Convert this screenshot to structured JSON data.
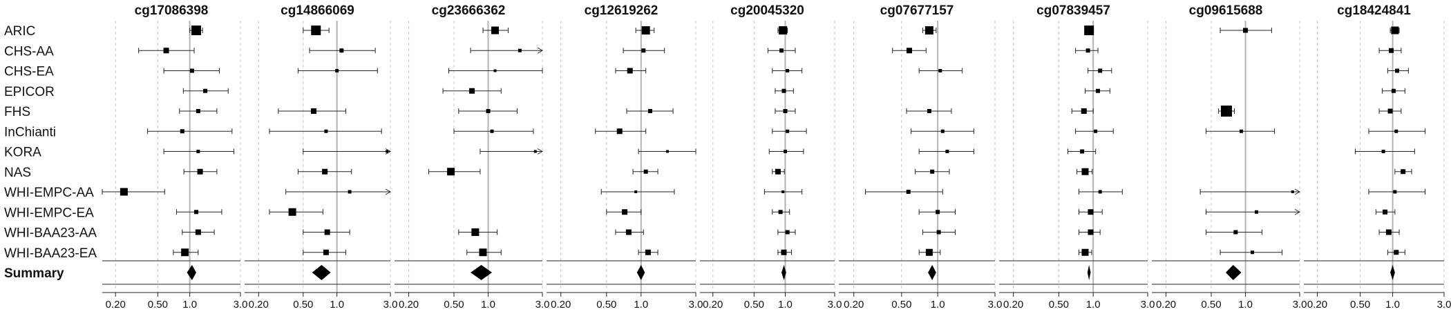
{
  "chart_data": {
    "type": "forest",
    "x_scale": "log",
    "xlim": [
      0.15,
      3.0
    ],
    "x_ticks": [
      0.2,
      0.5,
      1.0,
      3.0
    ],
    "x_tick_labels": [
      "0.20",
      "0.50",
      "1.0",
      "3.0"
    ],
    "reference_line": 1.0,
    "grid": "dashed-vertical",
    "studies": [
      "ARIC",
      "CHS-AA",
      "CHS-EA",
      "EPICOR",
      "FHS",
      "InChianti",
      "KORA",
      "NAS",
      "WHI-EMPC-AA",
      "WHI-EMPC-EA",
      "WHI-BAA23-AA",
      "WHI-BAA23-EA"
    ],
    "summary_label": "Summary",
    "panels": [
      {
        "title": "cg17086398",
        "points": [
          {
            "est": 1.15,
            "lo": 1.0,
            "hi": 1.32,
            "w": 14
          },
          {
            "est": 0.6,
            "lo": 0.33,
            "hi": 1.1,
            "w": 8
          },
          {
            "est": 1.05,
            "lo": 0.57,
            "hi": 1.9,
            "w": 6
          },
          {
            "est": 1.4,
            "lo": 0.87,
            "hi": 2.3,
            "w": 6
          },
          {
            "est": 1.2,
            "lo": 0.8,
            "hi": 1.8,
            "w": 6
          },
          {
            "est": 0.85,
            "lo": 0.4,
            "hi": 2.5,
            "w": 6
          },
          {
            "est": 1.2,
            "lo": 0.57,
            "hi": 2.6,
            "w": 5
          },
          {
            "est": 1.25,
            "lo": 0.88,
            "hi": 1.8,
            "w": 8
          },
          {
            "est": 0.24,
            "lo": 0.15,
            "hi": 0.58,
            "w": 11
          },
          {
            "est": 1.15,
            "lo": 0.75,
            "hi": 2.0,
            "w": 6
          },
          {
            "est": 1.2,
            "lo": 0.85,
            "hi": 1.7,
            "w": 8
          },
          {
            "est": 0.9,
            "lo": 0.7,
            "hi": 1.2,
            "w": 11
          }
        ],
        "summary": {
          "est": 1.05,
          "lo": 0.94,
          "hi": 1.15
        }
      },
      {
        "title": "cg14866069",
        "points": [
          {
            "est": 0.65,
            "lo": 0.5,
            "hi": 0.85,
            "w": 14
          },
          {
            "est": 1.1,
            "lo": 0.57,
            "hi": 2.2,
            "w": 6
          },
          {
            "est": 1.0,
            "lo": 0.45,
            "hi": 2.3,
            "w": 5
          },
          null,
          {
            "est": 0.62,
            "lo": 0.3,
            "hi": 1.2,
            "w": 8
          },
          {
            "est": 0.8,
            "lo": 0.25,
            "hi": 2.5,
            "w": 5
          },
          {
            "est": 2.8,
            "lo": 0.5,
            "hi": 3.0,
            "w": 4,
            "arrow": true
          },
          {
            "est": 0.78,
            "lo": 0.45,
            "hi": 1.35,
            "w": 8
          },
          {
            "est": 1.3,
            "lo": 0.35,
            "hi": 3.0,
            "w": 5,
            "arrow": true
          },
          {
            "est": 0.4,
            "lo": 0.25,
            "hi": 0.75,
            "w": 11
          },
          {
            "est": 0.82,
            "lo": 0.5,
            "hi": 1.3,
            "w": 8
          },
          {
            "est": 0.8,
            "lo": 0.5,
            "hi": 1.2,
            "w": 8
          }
        ],
        "summary": {
          "est": 0.73,
          "lo": 0.6,
          "hi": 0.88
        }
      },
      {
        "title": "cg23666362",
        "points": [
          {
            "est": 1.15,
            "lo": 0.9,
            "hi": 1.5,
            "w": 11
          },
          {
            "est": 1.9,
            "lo": 0.7,
            "hi": 3.0,
            "w": 5,
            "arrow": true
          },
          {
            "est": 1.15,
            "lo": 0.45,
            "hi": 3.0,
            "w": 4
          },
          {
            "est": 0.72,
            "lo": 0.4,
            "hi": 1.3,
            "w": 8
          },
          {
            "est": 1.0,
            "lo": 0.55,
            "hi": 1.8,
            "w": 6
          },
          {
            "est": 1.08,
            "lo": 0.5,
            "hi": 2.5,
            "w": 5
          },
          {
            "est": 2.6,
            "lo": 0.85,
            "hi": 3.0,
            "w": 4,
            "arrow": true
          },
          {
            "est": 0.47,
            "lo": 0.3,
            "hi": 0.85,
            "w": 11
          },
          null,
          null,
          {
            "est": 0.77,
            "lo": 0.55,
            "hi": 1.2,
            "w": 11
          },
          {
            "est": 0.9,
            "lo": 0.65,
            "hi": 1.3,
            "w": 11
          }
        ],
        "summary": {
          "est": 0.87,
          "lo": 0.7,
          "hi": 1.08
        }
      },
      {
        "title": "cg12619262",
        "points": [
          {
            "est": 1.1,
            "lo": 0.9,
            "hi": 1.3,
            "w": 12
          },
          {
            "est": 1.05,
            "lo": 0.7,
            "hi": 1.6,
            "w": 6
          },
          {
            "est": 0.8,
            "lo": 0.6,
            "hi": 1.1,
            "w": 8
          },
          null,
          {
            "est": 1.2,
            "lo": 0.75,
            "hi": 1.9,
            "w": 6
          },
          {
            "est": 0.65,
            "lo": 0.4,
            "hi": 1.1,
            "w": 8
          },
          {
            "est": 1.7,
            "lo": 0.95,
            "hi": 3.0,
            "w": 4
          },
          {
            "est": 1.1,
            "lo": 0.85,
            "hi": 1.4,
            "w": 6
          },
          {
            "est": 0.9,
            "lo": 0.45,
            "hi": 1.95,
            "w": 4
          },
          {
            "est": 0.72,
            "lo": 0.5,
            "hi": 1.0,
            "w": 8
          },
          {
            "est": 0.78,
            "lo": 0.6,
            "hi": 1.05,
            "w": 8
          },
          {
            "est": 1.15,
            "lo": 0.95,
            "hi": 1.4,
            "w": 8
          }
        ],
        "summary": {
          "est": 1.0,
          "lo": 0.92,
          "hi": 1.08
        }
      },
      {
        "title": "cg20045320",
        "points": [
          {
            "est": 0.95,
            "lo": 0.85,
            "hi": 1.05,
            "w": 12
          },
          {
            "est": 0.92,
            "lo": 0.68,
            "hi": 1.25,
            "w": 6
          },
          {
            "est": 1.05,
            "lo": 0.75,
            "hi": 1.45,
            "w": 5
          },
          {
            "est": 0.97,
            "lo": 0.8,
            "hi": 1.2,
            "w": 6
          },
          {
            "est": 1.0,
            "lo": 0.8,
            "hi": 1.25,
            "w": 6
          },
          {
            "est": 1.05,
            "lo": 0.75,
            "hi": 1.6,
            "w": 5
          },
          {
            "est": 1.0,
            "lo": 0.7,
            "hi": 1.5,
            "w": 5
          },
          {
            "est": 0.85,
            "lo": 0.75,
            "hi": 0.98,
            "w": 8
          },
          {
            "est": 0.95,
            "lo": 0.63,
            "hi": 1.45,
            "w": 4
          },
          {
            "est": 0.9,
            "lo": 0.75,
            "hi": 1.1,
            "w": 6
          },
          {
            "est": 1.05,
            "lo": 0.85,
            "hi": 1.25,
            "w": 6
          },
          {
            "est": 0.97,
            "lo": 0.85,
            "hi": 1.15,
            "w": 8
          }
        ],
        "summary": {
          "est": 0.97,
          "lo": 0.92,
          "hi": 1.02
        }
      },
      {
        "title": "cg07677157",
        "points": [
          {
            "est": 0.85,
            "lo": 0.75,
            "hi": 0.97,
            "w": 12
          },
          {
            "est": 0.58,
            "lo": 0.42,
            "hi": 0.8,
            "w": 8
          },
          {
            "est": 1.05,
            "lo": 0.7,
            "hi": 1.6,
            "w": 5
          },
          null,
          {
            "est": 0.85,
            "lo": 0.55,
            "hi": 1.3,
            "w": 6
          },
          {
            "est": 1.1,
            "lo": 0.6,
            "hi": 2.0,
            "w": 5
          },
          {
            "est": 1.2,
            "lo": 0.7,
            "hi": 2.0,
            "w": 5
          },
          {
            "est": 0.9,
            "lo": 0.65,
            "hi": 1.25,
            "w": 6
          },
          {
            "est": 0.57,
            "lo": 0.25,
            "hi": 1.1,
            "w": 6
          },
          {
            "est": 1.0,
            "lo": 0.7,
            "hi": 1.4,
            "w": 6
          },
          {
            "est": 1.02,
            "lo": 0.75,
            "hi": 1.4,
            "w": 6
          },
          {
            "est": 0.85,
            "lo": 0.7,
            "hi": 1.05,
            "w": 10
          }
        ],
        "summary": {
          "est": 0.9,
          "lo": 0.83,
          "hi": 0.97
        }
      },
      {
        "title": "cg07839457",
        "points": [
          {
            "est": 0.92,
            "lo": 0.85,
            "hi": 1.0,
            "w": 14
          },
          {
            "est": 0.9,
            "lo": 0.7,
            "hi": 1.1,
            "w": 6
          },
          {
            "est": 1.15,
            "lo": 0.9,
            "hi": 1.45,
            "w": 6
          },
          {
            "est": 1.1,
            "lo": 0.85,
            "hi": 1.4,
            "w": 6
          },
          {
            "est": 0.83,
            "lo": 0.65,
            "hi": 1.0,
            "w": 8
          },
          {
            "est": 1.05,
            "lo": 0.7,
            "hi": 1.5,
            "w": 5
          },
          {
            "est": 0.8,
            "lo": 0.6,
            "hi": 1.05,
            "w": 6
          },
          {
            "est": 0.85,
            "lo": 0.72,
            "hi": 0.98,
            "w": 10
          },
          {
            "est": 1.15,
            "lo": 0.75,
            "hi": 1.8,
            "w": 5
          },
          {
            "est": 0.95,
            "lo": 0.75,
            "hi": 1.2,
            "w": 8
          },
          {
            "est": 0.95,
            "lo": 0.75,
            "hi": 1.15,
            "w": 8
          },
          {
            "est": 0.85,
            "lo": 0.75,
            "hi": 0.97,
            "w": 10
          }
        ],
        "summary": {
          "est": 0.92,
          "lo": 0.89,
          "hi": 0.95
        }
      },
      {
        "title": "cg09615688",
        "points": [
          {
            "est": 1.0,
            "lo": 0.6,
            "hi": 1.7,
            "w": 7
          },
          null,
          null,
          null,
          {
            "est": 0.68,
            "lo": 0.58,
            "hi": 0.8,
            "w": 16
          },
          {
            "est": 0.92,
            "lo": 0.45,
            "hi": 1.8,
            "w": 5
          },
          null,
          null,
          {
            "est": 2.6,
            "lo": 0.4,
            "hi": 3.0,
            "w": 4,
            "arrow": true
          },
          {
            "est": 1.25,
            "lo": 0.45,
            "hi": 3.0,
            "w": 5,
            "arrow": true
          },
          {
            "est": 0.82,
            "lo": 0.45,
            "hi": 1.4,
            "w": 6
          },
          {
            "est": 1.15,
            "lo": 0.6,
            "hi": 2.1,
            "w": 5
          }
        ],
        "summary": {
          "est": 0.78,
          "lo": 0.67,
          "hi": 0.92
        }
      },
      {
        "title": "cg18424841",
        "points": [
          {
            "est": 1.05,
            "lo": 0.95,
            "hi": 1.15,
            "w": 11
          },
          {
            "est": 0.97,
            "lo": 0.75,
            "hi": 1.2,
            "w": 7
          },
          {
            "est": 1.1,
            "lo": 0.9,
            "hi": 1.4,
            "w": 6
          },
          {
            "est": 1.02,
            "lo": 0.8,
            "hi": 1.3,
            "w": 6
          },
          {
            "est": 0.95,
            "lo": 0.75,
            "hi": 1.2,
            "w": 7
          },
          {
            "est": 1.08,
            "lo": 0.6,
            "hi": 2.0,
            "w": 5
          },
          {
            "est": 0.82,
            "lo": 0.45,
            "hi": 1.6,
            "w": 5
          },
          {
            "est": 1.25,
            "lo": 1.05,
            "hi": 1.5,
            "w": 7
          },
          {
            "est": 1.05,
            "lo": 0.6,
            "hi": 2.0,
            "w": 5
          },
          {
            "est": 0.85,
            "lo": 0.7,
            "hi": 1.05,
            "w": 7
          },
          {
            "est": 0.92,
            "lo": 0.75,
            "hi": 1.15,
            "w": 8
          },
          {
            "est": 1.08,
            "lo": 0.9,
            "hi": 1.3,
            "w": 7
          }
        ],
        "summary": {
          "est": 1.0,
          "lo": 0.95,
          "hi": 1.05
        }
      }
    ]
  }
}
